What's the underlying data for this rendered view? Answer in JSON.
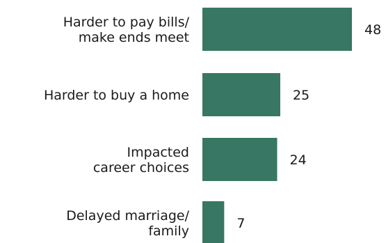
{
  "chart_data": {
    "type": "bar",
    "orientation": "horizontal",
    "categories": [
      [
        "Harder to pay bills/",
        "make ends meet"
      ],
      [
        "Harder to buy a home"
      ],
      [
        "Impacted",
        "career choices"
      ],
      [
        "Delayed marriage/",
        "family"
      ]
    ],
    "values": [
      48,
      25,
      24,
      7
    ],
    "value_labels": [
      "48",
      "25",
      "24",
      "7"
    ],
    "xlim": [
      0,
      48
    ],
    "bar_color": "#377763",
    "grid": false,
    "legend": "none"
  }
}
